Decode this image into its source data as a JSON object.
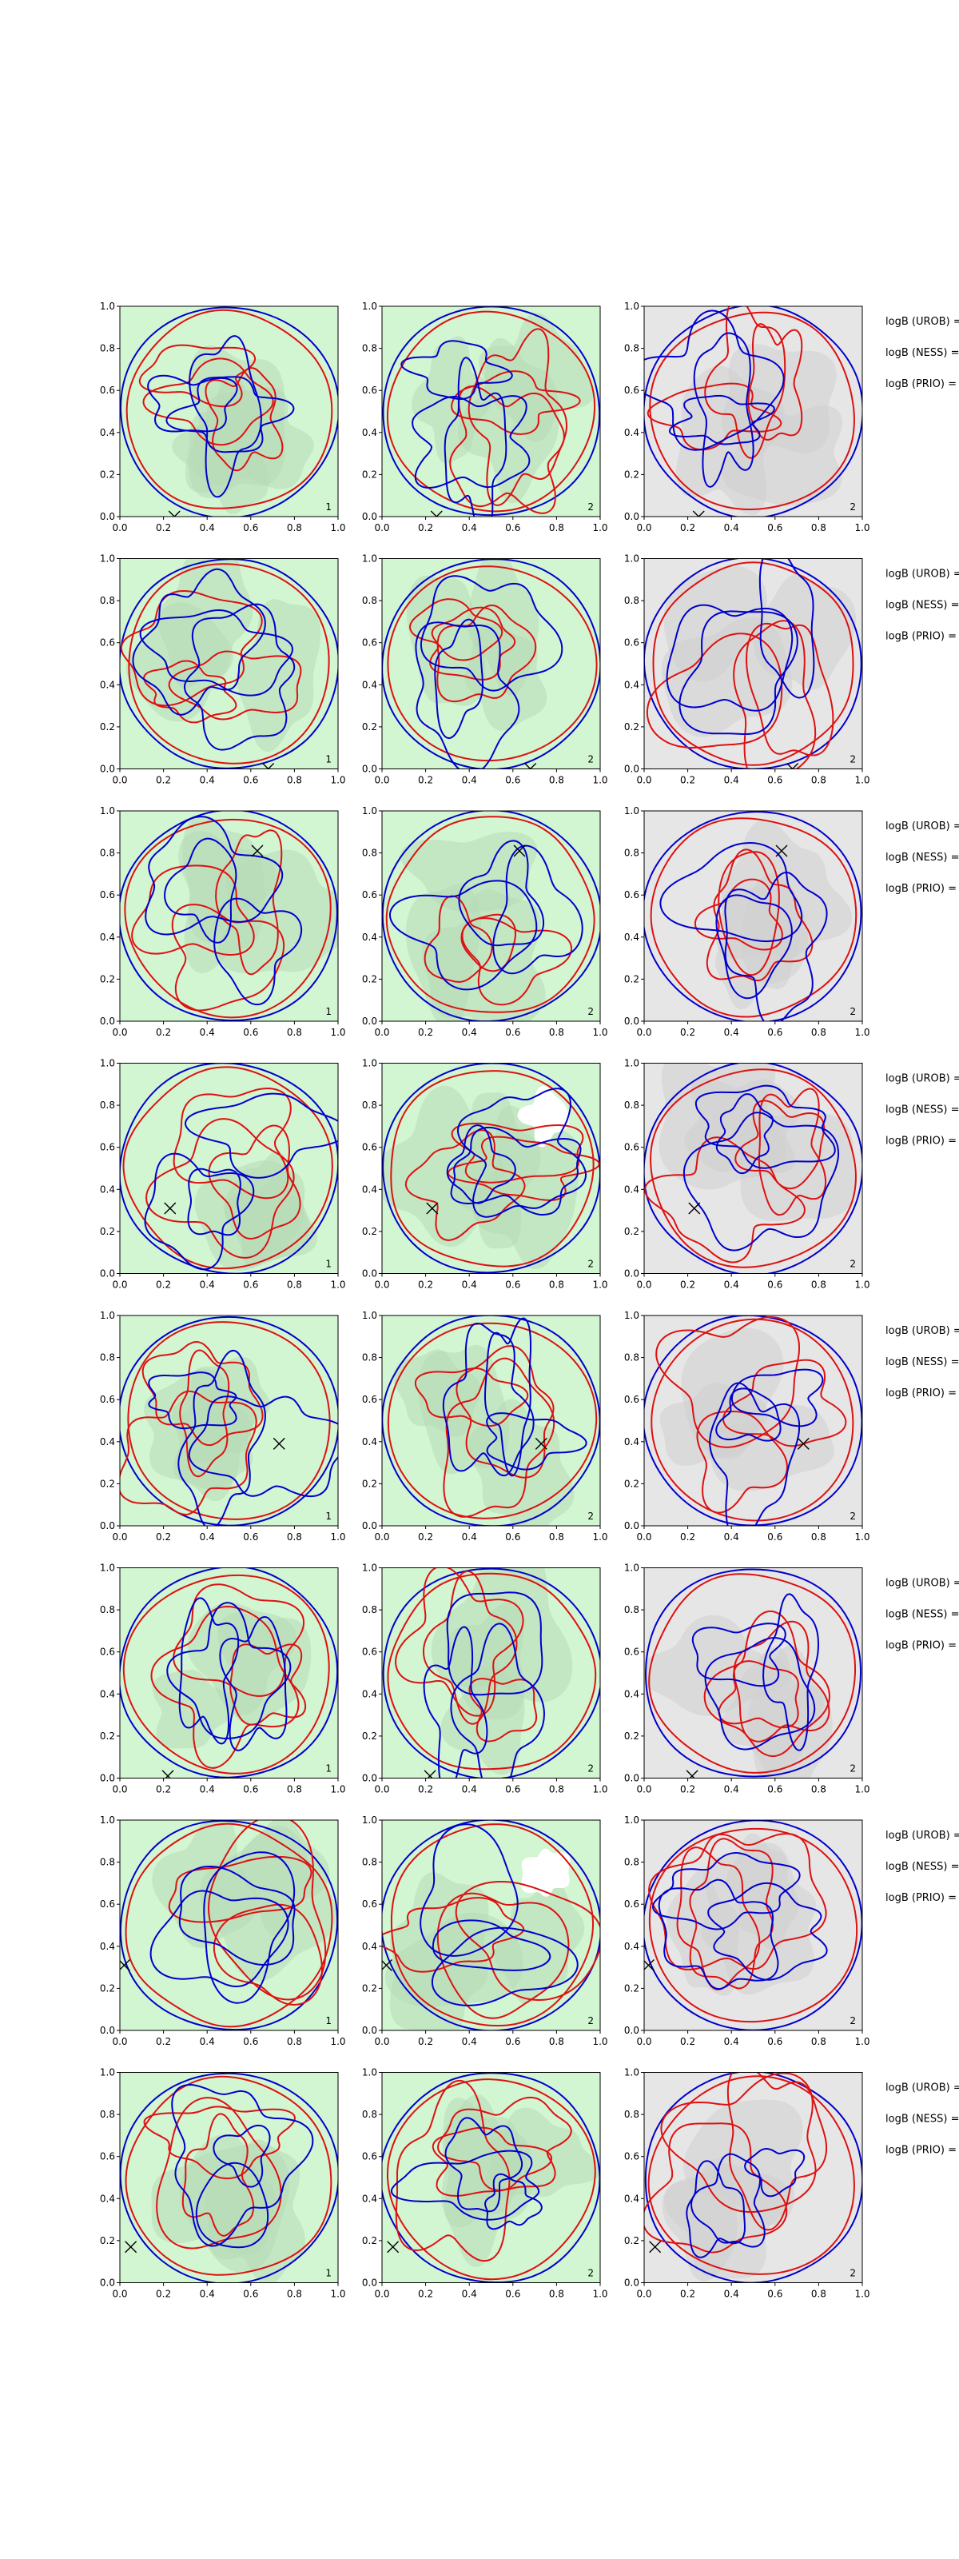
{
  "figure": {
    "row_annotations": [
      "logB (UROB) =",
      "logB (NESS) =",
      "logB (PRIO) ="
    ],
    "axis_ticks": [
      "0.0",
      "0.2",
      "0.4",
      "0.6",
      "0.8",
      "1.0"
    ],
    "panel_numbers": [
      "1",
      "2",
      "2"
    ]
  },
  "chart_data": {
    "type": "contour",
    "grid": {
      "rows": 8,
      "cols": 3
    },
    "xlim": [
      0,
      1
    ],
    "ylim": [
      0,
      1
    ],
    "xticks": [
      0.0,
      0.2,
      0.4,
      0.6,
      0.8,
      1.0
    ],
    "yticks": [
      0.0,
      0.2,
      0.4,
      0.6,
      0.8,
      1.0
    ],
    "grid_lines": false,
    "fill_colors": {
      "cols_1_2": "#d2f5d2",
      "col_3": "#e6e6e6"
    },
    "contour_colors": {
      "a": "#0000cc",
      "b": "#dd1111"
    },
    "markers": [
      {
        "row": 1,
        "x": 0.25,
        "y": 0.0
      },
      {
        "row": 2,
        "x": 0.68,
        "y": 0.0
      },
      {
        "row": 3,
        "x": 0.63,
        "y": 0.81
      },
      {
        "row": 4,
        "x": 0.23,
        "y": 0.31
      },
      {
        "row": 5,
        "x": 0.73,
        "y": 0.39
      },
      {
        "row": 6,
        "x": 0.22,
        "y": 0.01
      },
      {
        "row": 7,
        "x": 0.02,
        "y": 0.31
      },
      {
        "row": 8,
        "x": 0.05,
        "y": 0.17
      }
    ]
  }
}
